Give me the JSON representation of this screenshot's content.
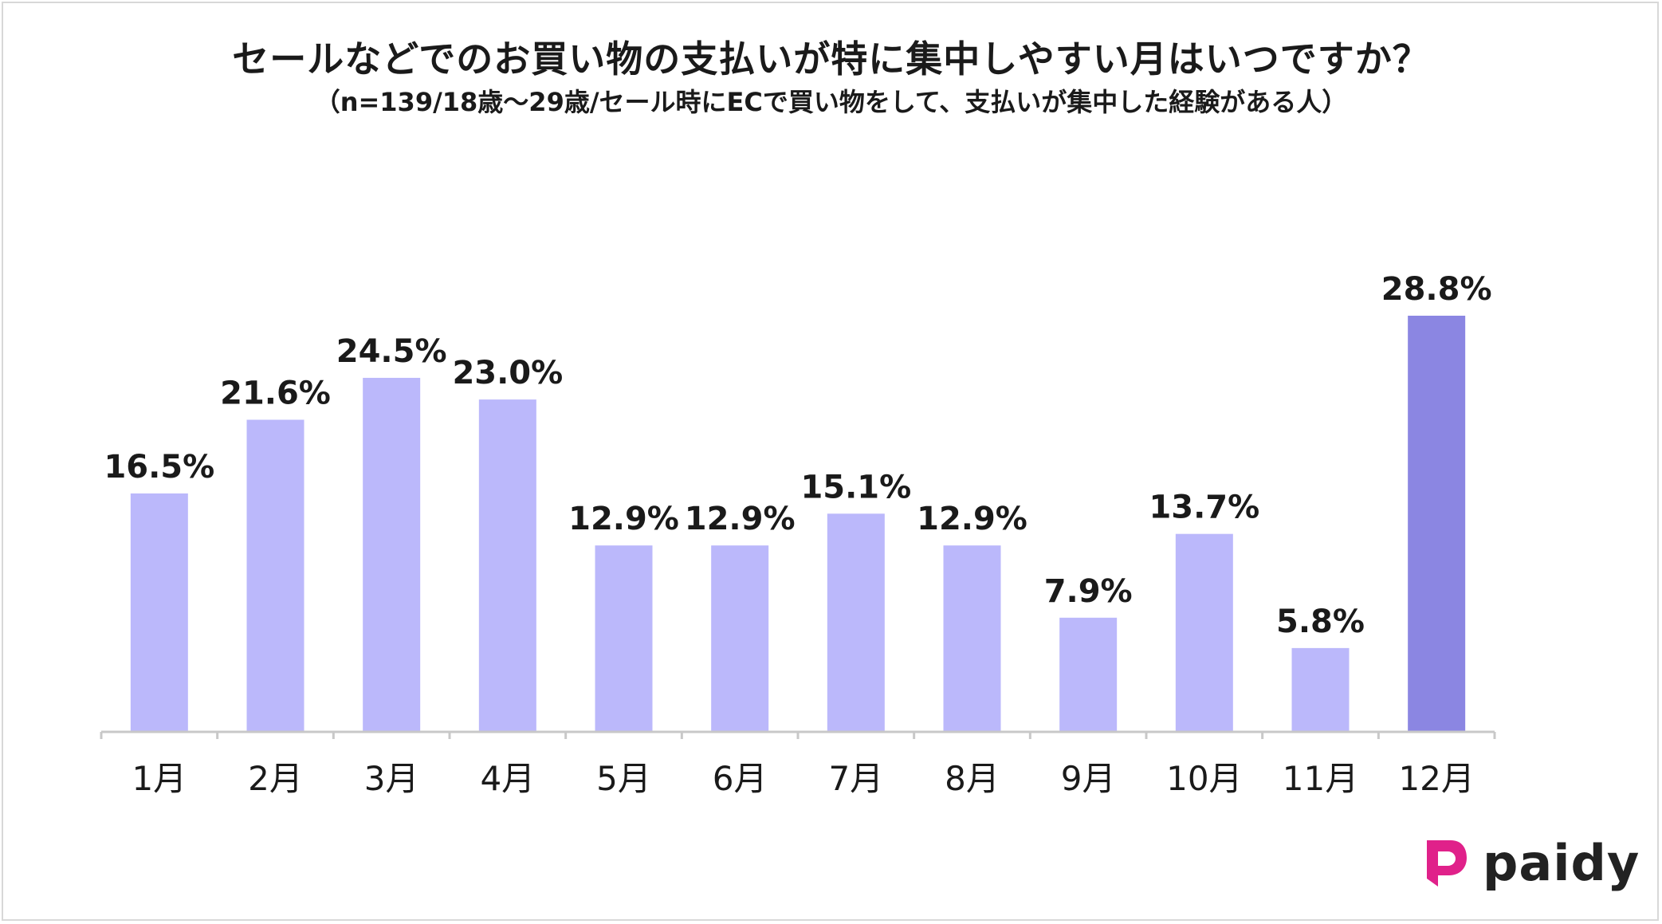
{
  "title": "セールなどでのお買い物の支払いが特に集中しやすい月はいつですか？",
  "subtitle": "（n=139/18歳～29歳/セール時にECで買い物をして、支払いが集中した経験がある人）",
  "logo_text": "paidy",
  "colors": {
    "bar": "#bbb8fb",
    "bar_highlight": "#8b86e2",
    "axis": "#c8c8c8",
    "logo_mark": "#e0218a"
  },
  "chart_data": {
    "type": "bar",
    "categories": [
      "1月",
      "2月",
      "3月",
      "4月",
      "5月",
      "6月",
      "7月",
      "8月",
      "9月",
      "10月",
      "11月",
      "12月"
    ],
    "values": [
      16.5,
      21.6,
      24.5,
      23.0,
      12.9,
      12.9,
      15.1,
      12.9,
      7.9,
      13.7,
      5.8,
      28.8
    ],
    "value_labels": [
      "16.5%",
      "21.6%",
      "24.5%",
      "23.0%",
      "12.9%",
      "12.9%",
      "15.1%",
      "12.9%",
      "7.9%",
      "13.7%",
      "5.8%",
      "28.8%"
    ],
    "highlight_index": 11,
    "ylim": [
      0,
      28.8
    ],
    "grid": false,
    "legend": "none"
  }
}
